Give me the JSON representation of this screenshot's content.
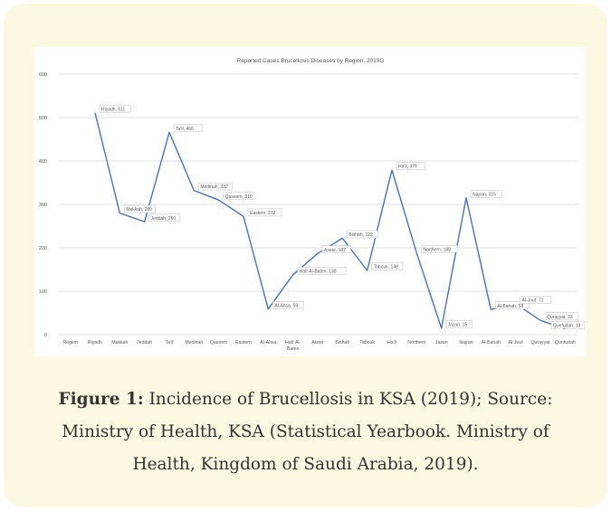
{
  "figure": {
    "caption_label": "Figure 1:",
    "caption_text": " Incidence of Brucellosis in KSA (2019); Source: Ministry of Health, KSA (Statistical Yearbook. Ministry of Health, Kingdom of Saudi Arabia, 2019)."
  },
  "colors": {
    "card_background": "#fdf8e2",
    "line": "#4472c4",
    "grid": "#d9d9d9",
    "text": "#595959"
  },
  "chart_data": {
    "type": "line",
    "title": "Reported Cases Brucellosis Diseases by Region, 2019G",
    "xlabel": "",
    "ylabel": "",
    "ylim": [
      0,
      600
    ],
    "yticks": [
      0,
      100,
      200,
      300,
      400,
      500,
      600
    ],
    "grid": true,
    "categories": [
      "Region",
      "Riyadh",
      "Makkah",
      "Jeddah",
      "Ta'if",
      "Medinah",
      "Qaseem",
      "Eastern",
      "Al-Ahsa",
      "Hafr Al-Baten",
      "Aseer",
      "Bishah",
      "Tabouk",
      "Ha'il",
      "Northern",
      "Jazan",
      "Najran",
      "Al-Bahah",
      "Al-Jouf",
      "Qurayyat",
      "Qunfudah"
    ],
    "category_lines": [
      [
        "Region"
      ],
      [
        "Riyadh"
      ],
      [
        "Makkah"
      ],
      [
        "Jeddah"
      ],
      [
        "Ta'if"
      ],
      [
        "Medinah"
      ],
      [
        "Qaseem"
      ],
      [
        "Eastern"
      ],
      [
        "Al-Ahsa"
      ],
      [
        "Hafr Al-",
        "Baten"
      ],
      [
        "Aseer"
      ],
      [
        "Bishah"
      ],
      [
        "Tabouk"
      ],
      [
        "Ha'il"
      ],
      [
        "Northern"
      ],
      [
        "Jazan"
      ],
      [
        "Najran"
      ],
      [
        "Al-Bahah"
      ],
      [
        "Al-Jouf"
      ],
      [
        "Qurayyat"
      ],
      [
        "Qunfudah"
      ]
    ],
    "series": [
      {
        "values": [
          null,
          511,
          280,
          260,
          466,
          332,
          310,
          272,
          59,
          138,
          187,
          222,
          148,
          379,
          188,
          15,
          315,
          58,
          71,
          33,
          13
        ]
      }
    ],
    "data_labels": [
      "",
      "Riyadh, 511",
      "Makkah, 280",
      "Jeddah, 260",
      "Ta'if, 466",
      "Medinah, 332",
      "Qaseem, 310",
      "Eastern, 272",
      "Al-Ahsa, 59",
      "Hafr Al-Baten, 138",
      "Aseer, 187",
      "Bishah, 222",
      "Tabouk, 148",
      "Ha'il, 379",
      "Northern, 188",
      "Jazan, 15",
      "Najran, 315",
      "Al-Bahah, 58",
      "Al-Jouf, 71",
      "Qurayyat, 33",
      "Qunfudah, 13"
    ]
  }
}
